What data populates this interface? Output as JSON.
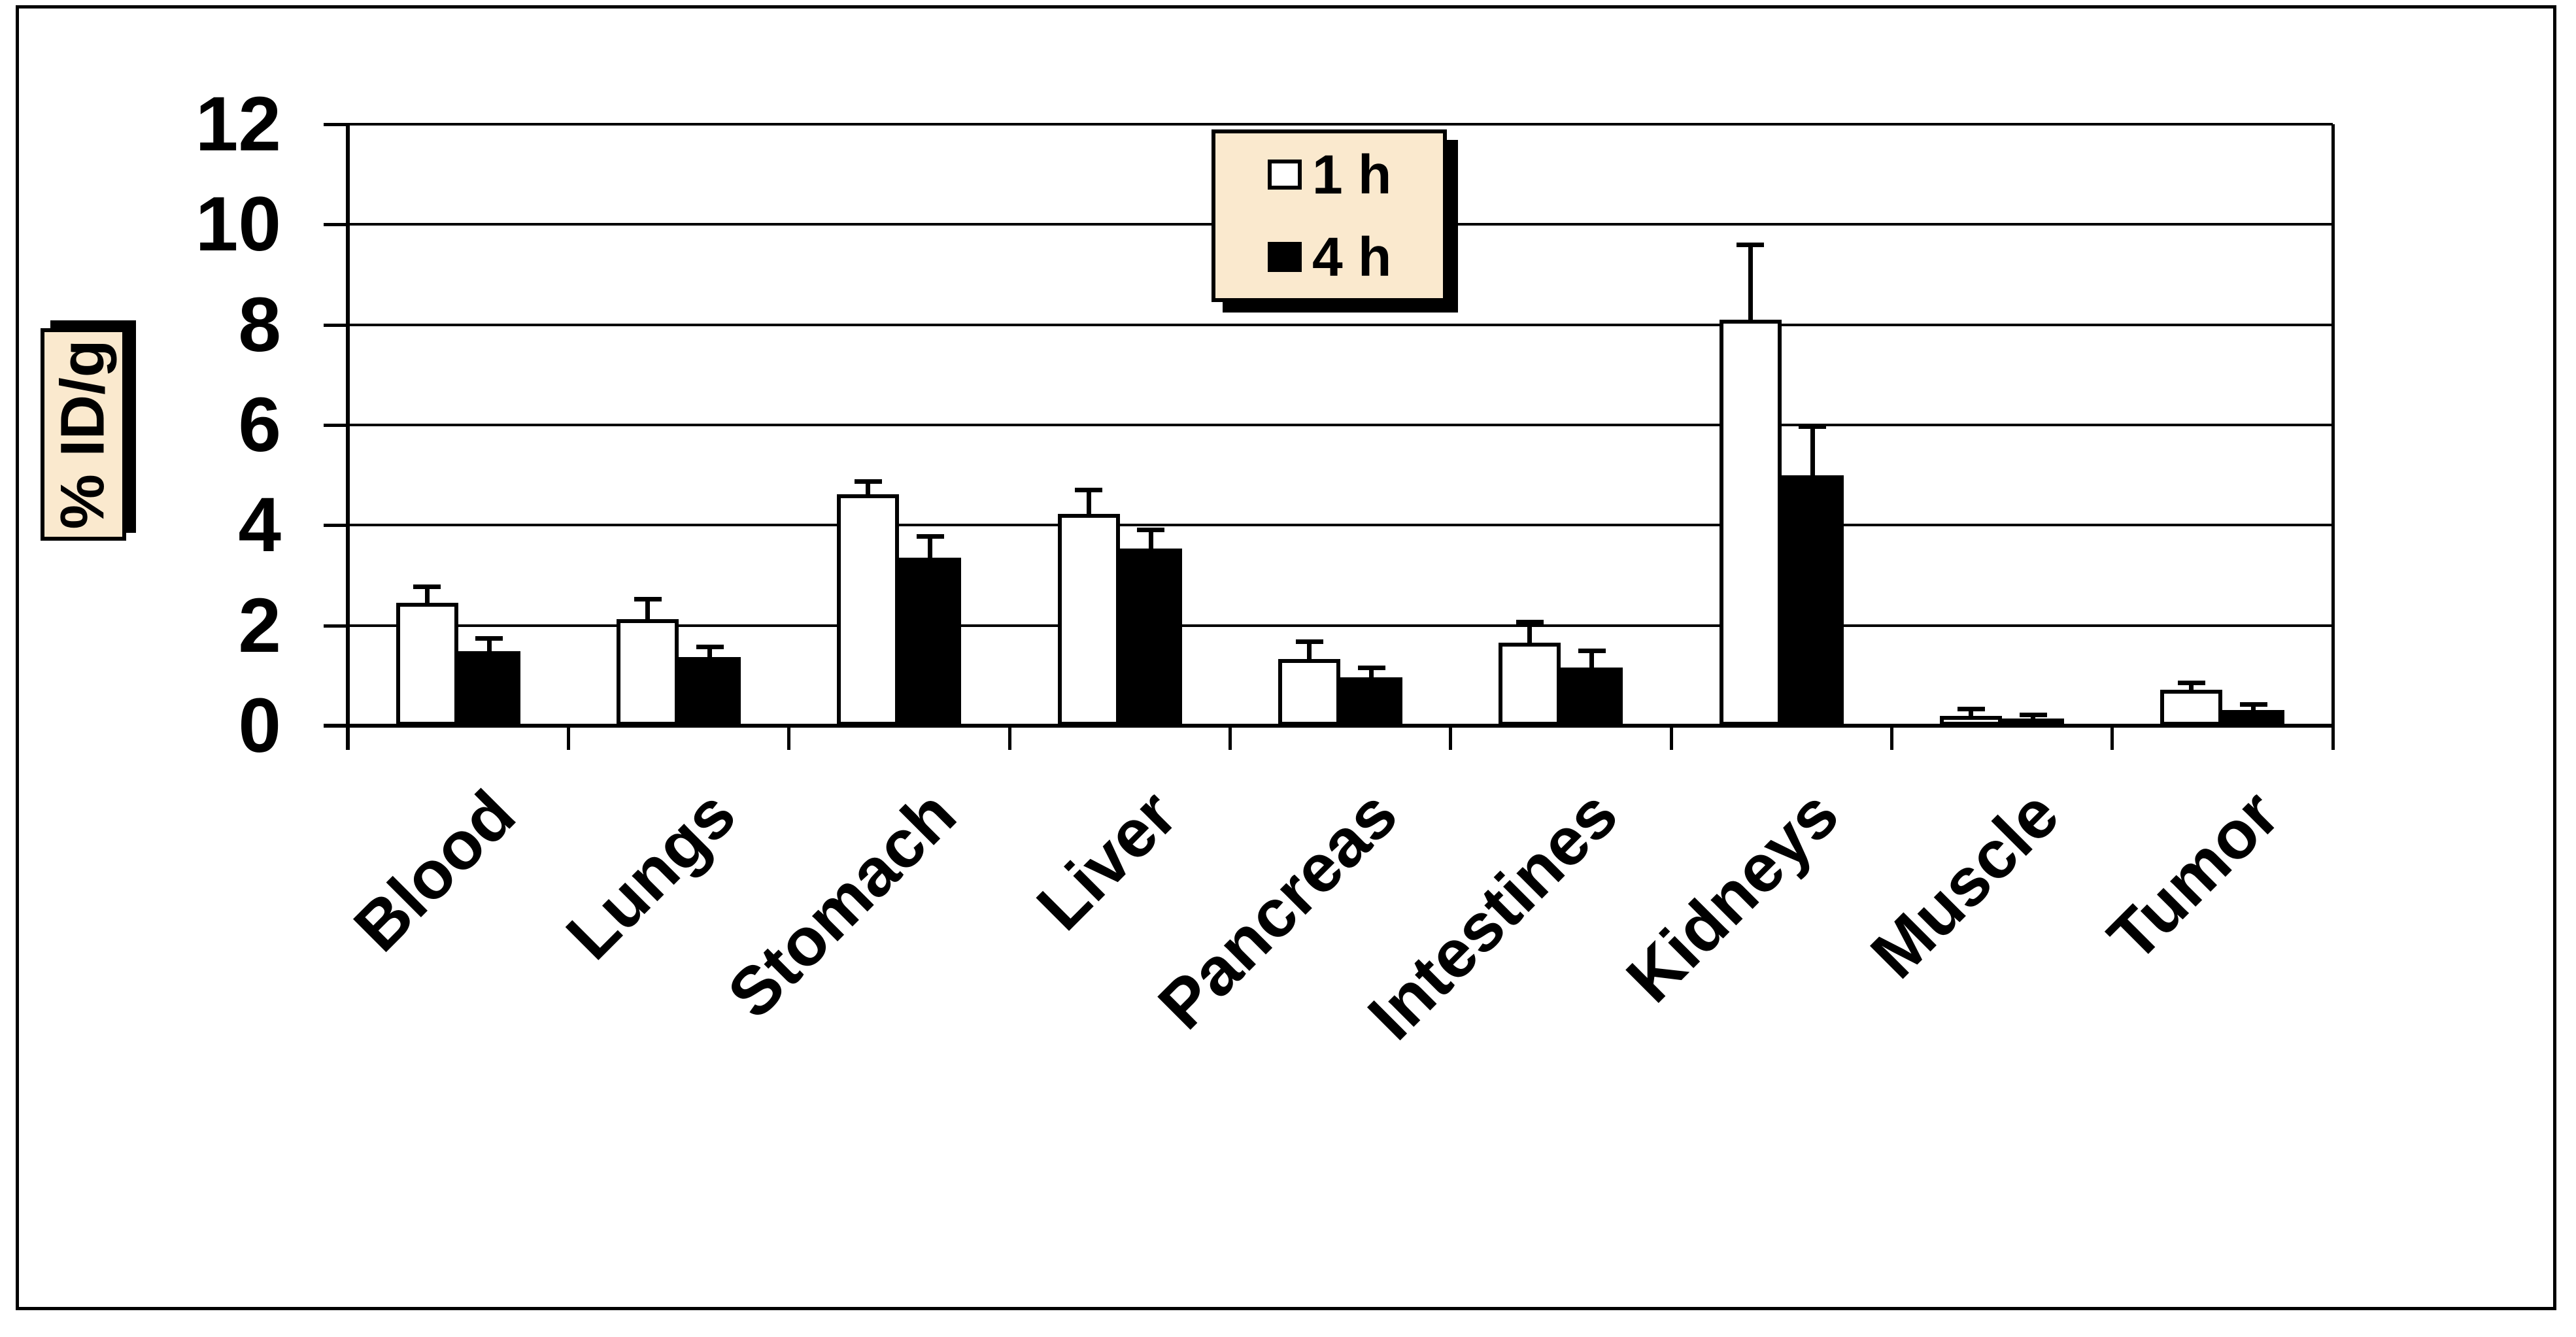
{
  "chart_data": {
    "type": "bar",
    "title": "",
    "xlabel": "",
    "ylabel": "% ID/g",
    "categories": [
      "Blood",
      "Lungs",
      "Stomach",
      "Liver",
      "Pancreas",
      "Intestines",
      "Kidneys",
      "Muscle",
      "Tumor"
    ],
    "yticks": [
      0,
      2,
      4,
      6,
      8,
      10,
      12
    ],
    "ylim": [
      0,
      12
    ],
    "grid": true,
    "x_tick_label_rotation": -45,
    "legend_position": "top-center",
    "error_bars": "upper",
    "series": [
      {
        "name": "1 h",
        "fill": "#ffffff",
        "values": [
          2.45,
          2.12,
          4.62,
          4.23,
          1.33,
          1.66,
          8.1,
          0.2,
          0.72
        ],
        "errors": [
          0.32,
          0.4,
          0.25,
          0.47,
          0.35,
          0.41,
          1.5,
          0.13,
          0.13
        ]
      },
      {
        "name": "4 h",
        "fill": "#000000",
        "values": [
          1.49,
          1.37,
          3.35,
          3.53,
          0.96,
          1.16,
          5.0,
          0.15,
          0.31
        ],
        "errors": [
          0.25,
          0.2,
          0.43,
          0.38,
          0.19,
          0.33,
          0.97,
          0.07,
          0.11
        ]
      }
    ],
    "colors": {
      "bar_outline": "#000000",
      "gridline": "#000000",
      "label_box_fill": "#fae9ce",
      "background": "#ffffff"
    }
  },
  "legend": {
    "item1_label": "1 h",
    "item2_label": "4 h"
  },
  "axis": {
    "ylabel": "% ID/g"
  }
}
